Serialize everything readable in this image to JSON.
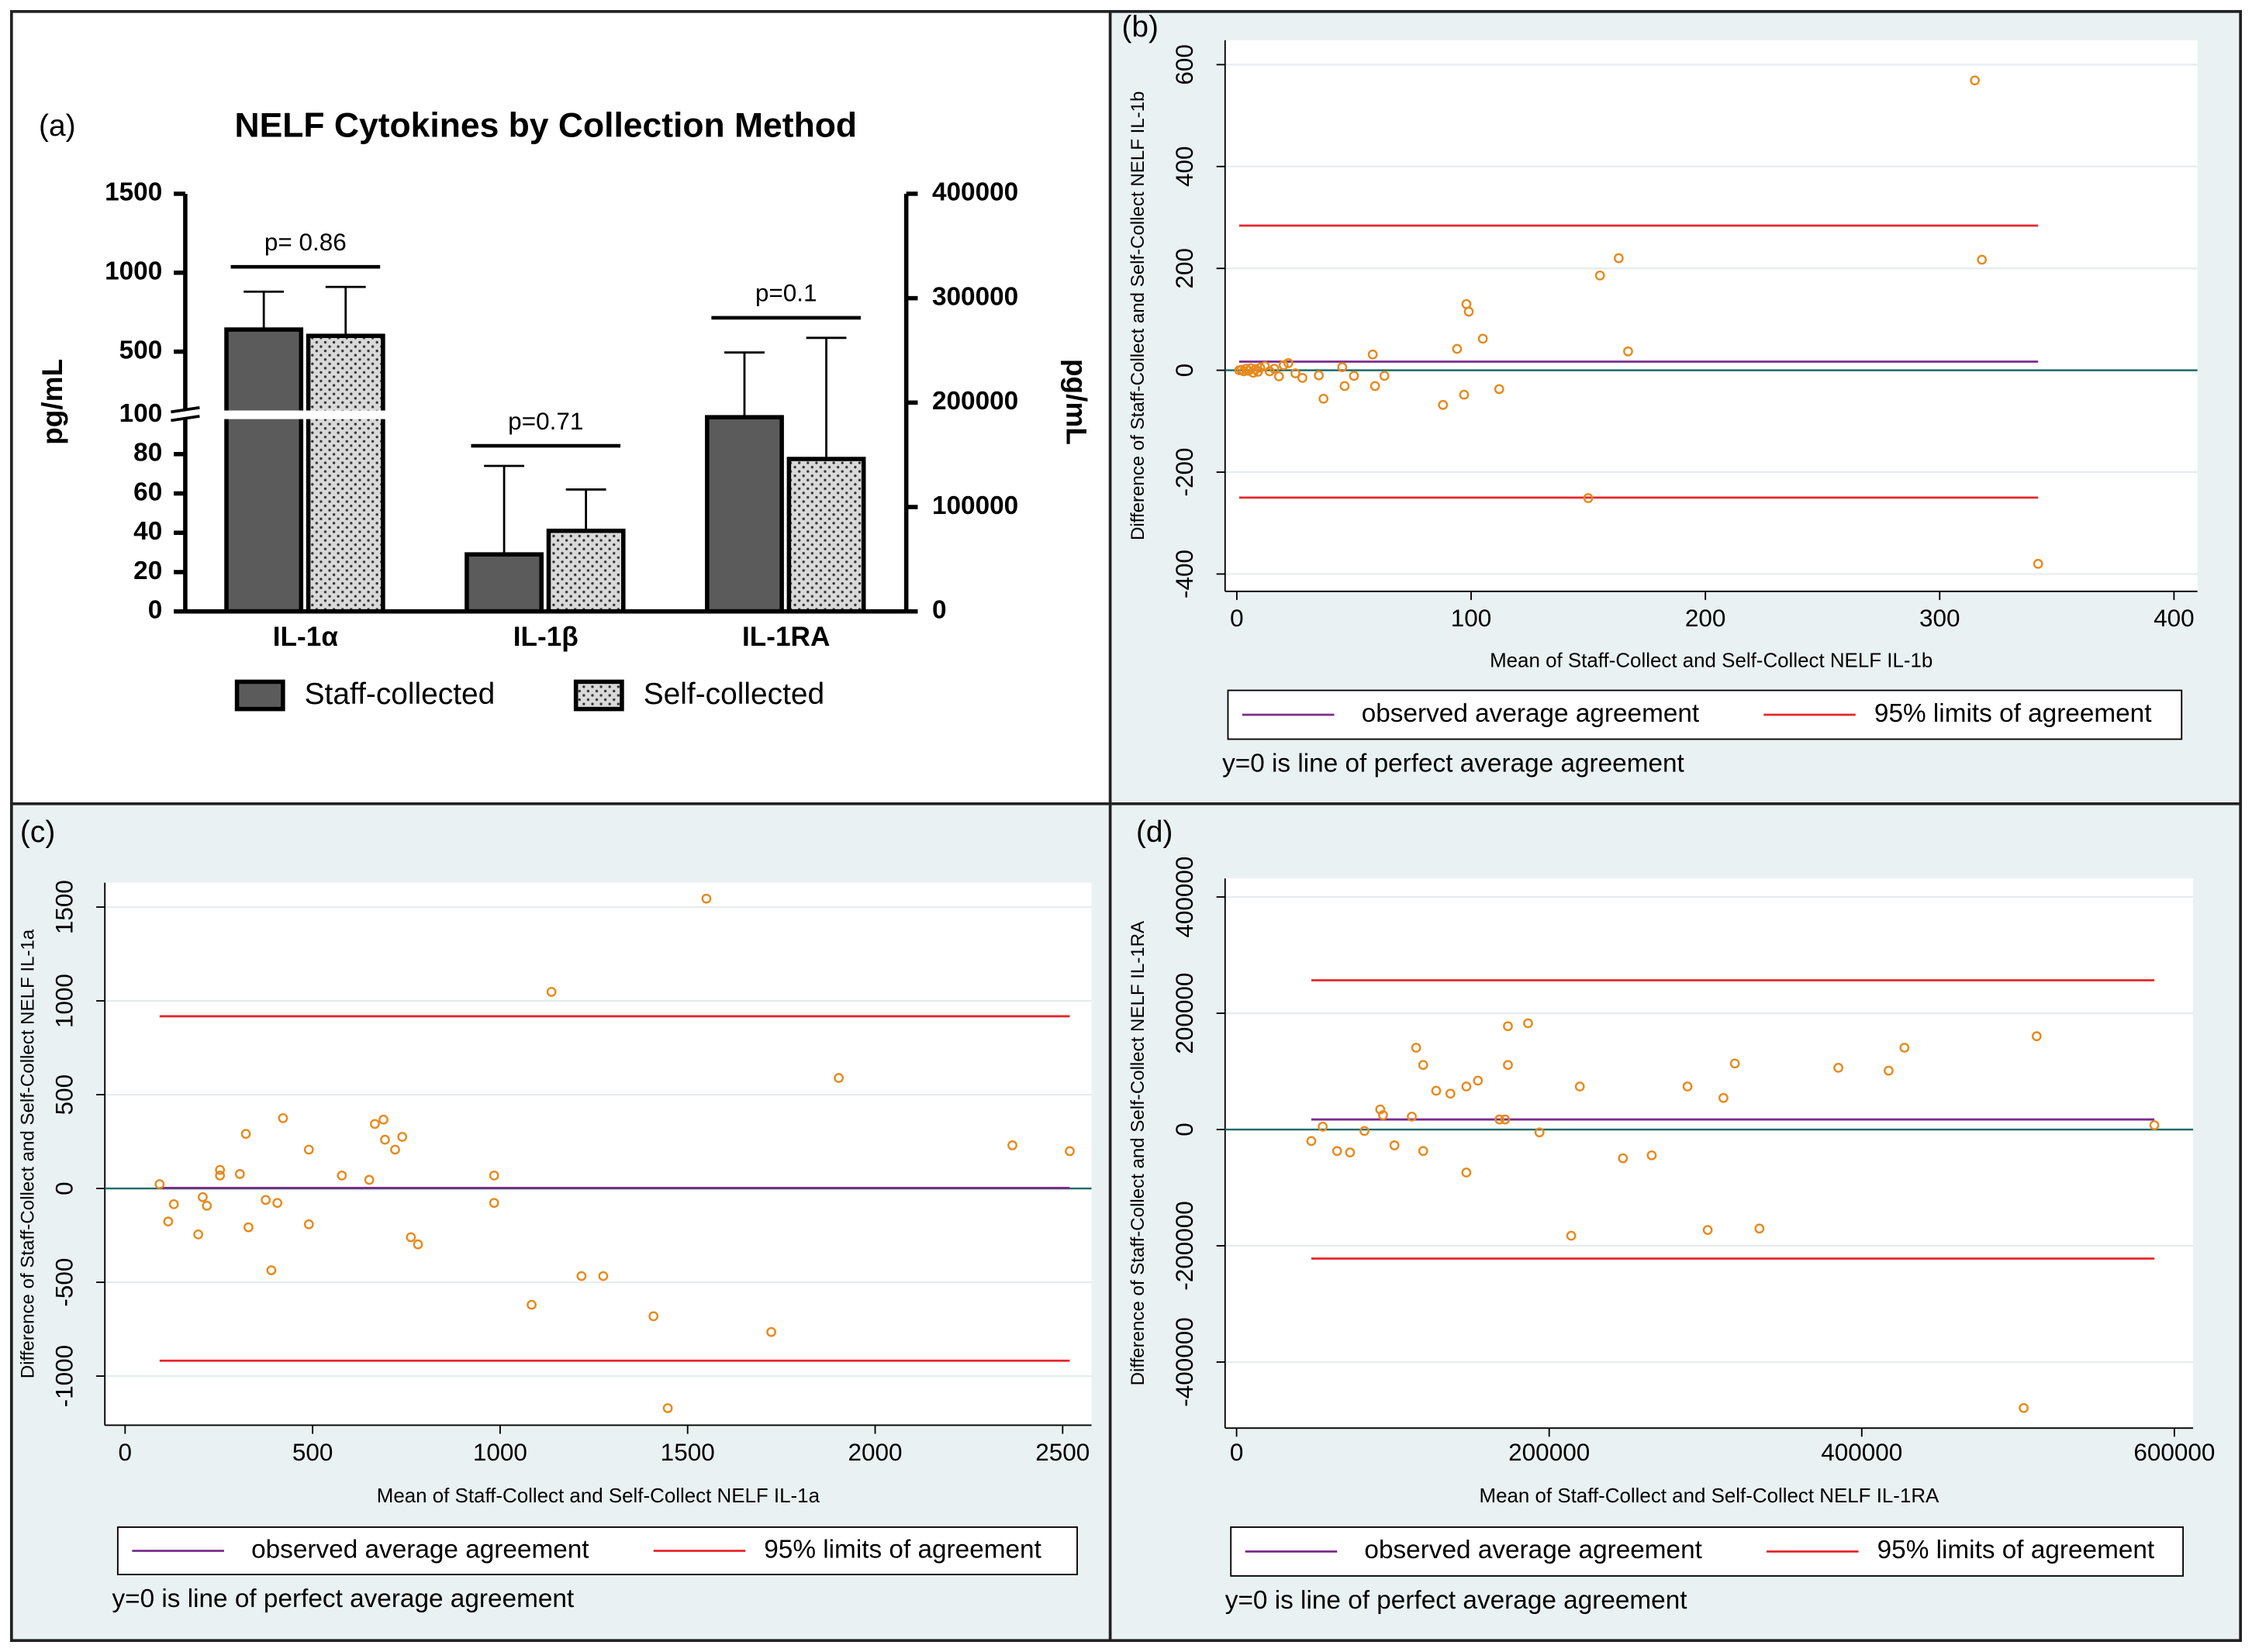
{
  "chart_data": [
    {
      "type": "bar",
      "panel": "(a)",
      "title": "NELF Cytokines by Collection Method",
      "categories": [
        "IL-1α",
        "IL-1β",
        "IL-1RA"
      ],
      "category_axes": [
        "y",
        "y",
        "y2"
      ],
      "series": [
        {
          "name": "Staff-collected",
          "color": "#5b5b5b",
          "values": [
            640,
            29,
            186000
          ],
          "errors": [
            240,
            45,
            62000
          ]
        },
        {
          "name": "Self-collected",
          "color": "#d9d9d9",
          "pattern": "dots",
          "values": [
            600,
            41,
            146000
          ],
          "errors": [
            310,
            21,
            116000
          ]
        }
      ],
      "annotations": [
        "p= 0.86",
        "p=0.71",
        "p=0.1"
      ],
      "y_label": "pg/mL",
      "y2_label": "pg/mL",
      "ylim": [
        0,
        1500
      ],
      "y_break": 100,
      "yticks": [
        0,
        20,
        40,
        60,
        80,
        100,
        500,
        1000,
        1500
      ],
      "y2lim": [
        0,
        400000
      ],
      "y2ticks": [
        0,
        100000,
        200000,
        300000,
        400000
      ]
    },
    {
      "type": "scatter",
      "panel": "(b)",
      "color": "#e8891c",
      "x_label": "Mean of Staff-Collect and Self-Collect NELF IL-1b",
      "y_label": "Difference of Staff-Collect and Self-Collect NELF IL-1b",
      "x": [
        1,
        2,
        3,
        4,
        5,
        6,
        7,
        8,
        9,
        10,
        12,
        14,
        16,
        18,
        20,
        22,
        25,
        28,
        35,
        37,
        45,
        46,
        50,
        58,
        59,
        63,
        88,
        94,
        97,
        98,
        99,
        105,
        112,
        150,
        155,
        163,
        167,
        315,
        318,
        342
      ],
      "values": [
        0,
        1,
        -2,
        3,
        -1,
        4,
        -5,
        2,
        -3,
        5,
        8,
        -2,
        3,
        -12,
        10,
        14,
        -6,
        -15,
        -10,
        -56,
        6,
        -31,
        -11,
        31,
        -31,
        -11,
        -68,
        42,
        -48,
        130,
        115,
        62,
        -37,
        -251,
        186,
        220,
        37,
        569,
        217,
        -380
      ],
      "reference_lines": [
        {
          "name": "observed average agreement",
          "color": "#7b2b8b",
          "values": [
            17
          ]
        },
        {
          "name": "95% limits of agreement",
          "color": "#e8252a",
          "values": [
            -250,
            284
          ]
        }
      ],
      "zero_line_color": "#1f6b6b",
      "note": "y=0 is line of perfect average agreement",
      "xlim": [
        -5,
        410
      ],
      "ylim": [
        -434,
        648
      ],
      "xticks": [
        0,
        100,
        200,
        300,
        400
      ],
      "yticks": [
        -400,
        -200,
        0,
        200,
        400,
        600
      ],
      "grid": true
    },
    {
      "type": "scatter",
      "panel": "(c)",
      "color": "#e8891c",
      "x_label": "Mean of Staff-Collect and Self-Collect NELF IL-1a",
      "y_label": "Difference of Staff-Collect and Self-Collect NELF IL-1a",
      "x": [
        92,
        115,
        130,
        195,
        207,
        218,
        253,
        253,
        306,
        322,
        329,
        375,
        390,
        406,
        421,
        490,
        490,
        578,
        651,
        666,
        689,
        693,
        720,
        739,
        762,
        781,
        984,
        984,
        1084,
        1137,
        1217,
        1275,
        1409,
        1447,
        1550,
        1723,
        1903,
        2366,
        2519
      ],
      "values": [
        23,
        -176,
        -84,
        -245,
        -46,
        -92,
        99,
        69,
        77,
        291,
        -207,
        -61,
        -436,
        -77,
        375,
        207,
        -191,
        69,
        46,
        344,
        367,
        260,
        207,
        275,
        -260,
        -298,
        69,
        -77,
        -620,
        1048,
        -467,
        -467,
        -681,
        -1171,
        1545,
        -765,
        589,
        230,
        199
      ],
      "reference_lines": [
        {
          "name": "observed average agreement",
          "color": "#7b2b8b",
          "values": [
            3
          ]
        },
        {
          "name": "95% limits of agreement",
          "color": "#e8252a",
          "values": [
            -918,
            918
          ]
        }
      ],
      "zero_line_color": "#1f6b6b",
      "note": "y=0 is line of perfect average agreement",
      "xlim": [
        -54,
        2577
      ],
      "ylim": [
        -1262,
        1630
      ],
      "xticks": [
        0,
        500,
        1000,
        1500,
        2000,
        2500
      ],
      "yticks": [
        -1000,
        -500,
        0,
        500,
        1000,
        1500
      ],
      "grid": true
    },
    {
      "type": "scatter",
      "panel": "(d)",
      "color": "#e8891c",
      "x_label": "Mean of Staff-Collect and Self-Collect NELF IL-1RA",
      "y_label": "Difference of Staff-Collect and Self-Collect NELF IL-1RA",
      "x": [
        47800,
        55100,
        64300,
        72600,
        81800,
        91900,
        93700,
        101000,
        112100,
        114900,
        119400,
        119400,
        127700,
        136800,
        147000,
        147000,
        154400,
        168200,
        171800,
        173600,
        173600,
        186500,
        193800,
        214100,
        219600,
        247200,
        265600,
        288500,
        301400,
        311500,
        318800,
        334500,
        385000,
        417200,
        427300,
        503600,
        511900,
        587200
      ],
      "values": [
        -19750,
        4900,
        -37000,
        -39500,
        -2500,
        34600,
        24700,
        -27200,
        22200,
        140700,
        111100,
        -37000,
        66700,
        61700,
        74000,
        -74000,
        84000,
        17300,
        17300,
        111100,
        177800,
        182700,
        -4900,
        -182700,
        74000,
        -49400,
        -44400,
        74000,
        -172800,
        54300,
        113600,
        -170400,
        106200,
        101200,
        140700,
        -479000,
        160500,
        7400
      ],
      "reference_lines": [
        {
          "name": "observed average agreement",
          "color": "#7b2b8b",
          "values": [
            17300
          ]
        },
        {
          "name": "95% limits of agreement",
          "color": "#e8252a",
          "values": [
            -222000,
            256800
          ]
        }
      ],
      "zero_line_color": "#1f6b6b",
      "note": "y=0 is line of perfect average agreement",
      "xlim": [
        -7350,
        612000
      ],
      "ylim": [
        -513600,
        432000
      ],
      "xticks": [
        0,
        200000,
        400000,
        600000
      ],
      "yticks": [
        -400000,
        -200000,
        0,
        200000,
        400000
      ],
      "grid": true
    }
  ]
}
